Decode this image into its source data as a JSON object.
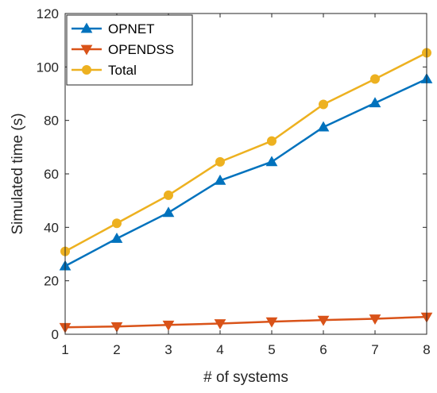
{
  "chart_data": {
    "type": "line",
    "xlabel": "# of systems",
    "ylabel": "Simulated time (s)",
    "xlim": [
      1,
      8
    ],
    "ylim": [
      0,
      120
    ],
    "xticks": [
      1,
      2,
      3,
      4,
      5,
      6,
      7,
      8
    ],
    "yticks": [
      0,
      20,
      40,
      60,
      80,
      100,
      120
    ],
    "grid": false,
    "legend_position": "top-left",
    "x": [
      1,
      2,
      3,
      4,
      5,
      6,
      7,
      8
    ],
    "series": [
      {
        "name": "OPNET",
        "values": [
          25.5,
          35.8,
          45.5,
          57.5,
          64.5,
          77.5,
          86.5,
          95.5
        ],
        "color": "#0072BD",
        "marker": "triangle-up"
      },
      {
        "name": "OPENDSS",
        "values": [
          2.6,
          2.9,
          3.5,
          4.0,
          4.7,
          5.3,
          5.8,
          6.5
        ],
        "color": "#D95319",
        "marker": "triangle-down"
      },
      {
        "name": "Total",
        "values": [
          31.0,
          41.5,
          52.0,
          64.5,
          72.3,
          86.0,
          95.5,
          105.3
        ],
        "color": "#EDB120",
        "marker": "circle"
      }
    ]
  }
}
